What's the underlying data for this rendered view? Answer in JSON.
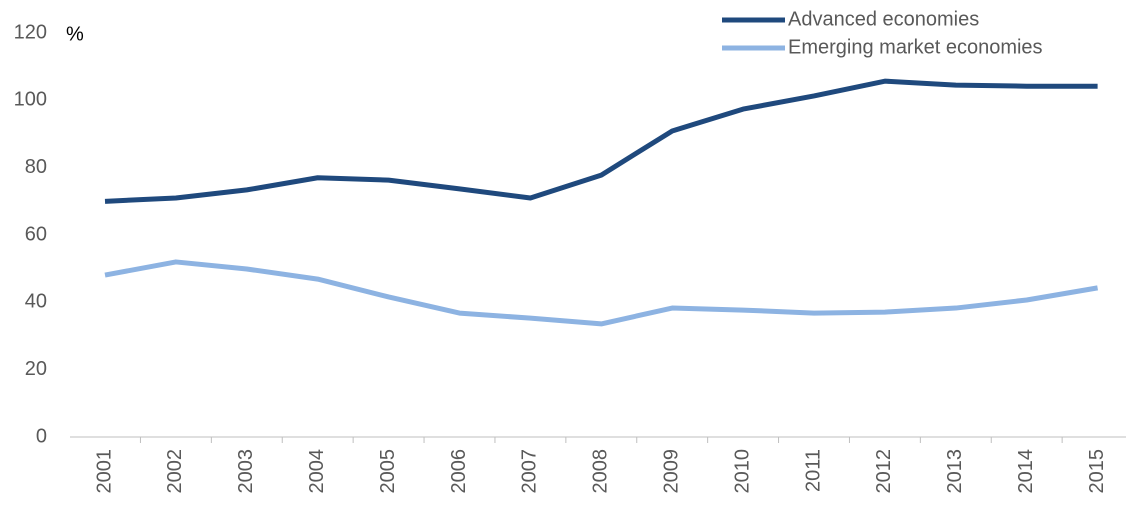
{
  "chart_data": {
    "type": "line",
    "y_label": "%",
    "categories": [
      "2001",
      "2002",
      "2003",
      "2004",
      "2005",
      "2006",
      "2007",
      "2008",
      "2009",
      "2010",
      "2011",
      "2012",
      "2013",
      "2014",
      "2015"
    ],
    "series": [
      {
        "name": "Advanced economies",
        "color": "#1f497d",
        "values": [
          70,
          71,
          73.4,
          77,
          76.3,
          73.7,
          71,
          77.8,
          90.9,
          97.4,
          101.3,
          105.7,
          104.5,
          104.2,
          104.2
        ]
      },
      {
        "name": "Emerging market economies",
        "color": "#8db3e2",
        "values": [
          48.1,
          52,
          49.9,
          46.9,
          41.6,
          36.8,
          35.3,
          33.6,
          38.3,
          37.7,
          36.8,
          37.1,
          38.3,
          40.7,
          44.3
        ]
      }
    ],
    "ylim": [
      0,
      120
    ],
    "yticks": [
      0,
      20,
      40,
      60,
      80,
      100,
      120
    ],
    "grid": false
  }
}
